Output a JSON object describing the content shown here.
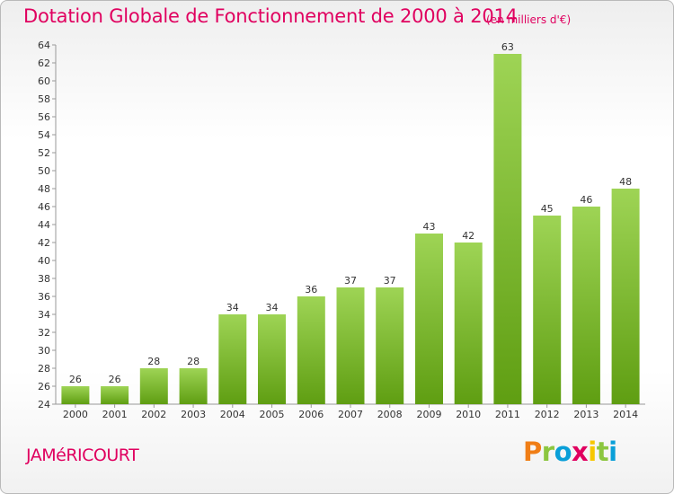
{
  "header": {
    "title": "Dotation Globale de Fonctionnement de 2000 à 2014",
    "unit_note": "(en milliers d'€)"
  },
  "footer": {
    "commune": "JAMéRICOURT",
    "logo_letters": [
      "P",
      "r",
      "o",
      "x",
      "i",
      "t",
      "i"
    ]
  },
  "colors": {
    "accent": "#e0005f",
    "bar_top": "#9ed455",
    "bar_bottom": "#5f9e12"
  },
  "chart_data": {
    "type": "bar",
    "title": "Dotation Globale de Fonctionnement de 2000 à 2014",
    "subtitle": "(en milliers d'€)",
    "xlabel": "",
    "ylabel": "",
    "categories": [
      "2000",
      "2001",
      "2002",
      "2003",
      "2004",
      "2005",
      "2006",
      "2007",
      "2008",
      "2009",
      "2010",
      "2011",
      "2012",
      "2013",
      "2014"
    ],
    "values": [
      26,
      26,
      28,
      28,
      34,
      34,
      36,
      37,
      37,
      43,
      42,
      63,
      45,
      46,
      48
    ],
    "ylim": [
      24,
      64
    ],
    "ytick_step": 2,
    "grid": false,
    "data_labels": true
  }
}
